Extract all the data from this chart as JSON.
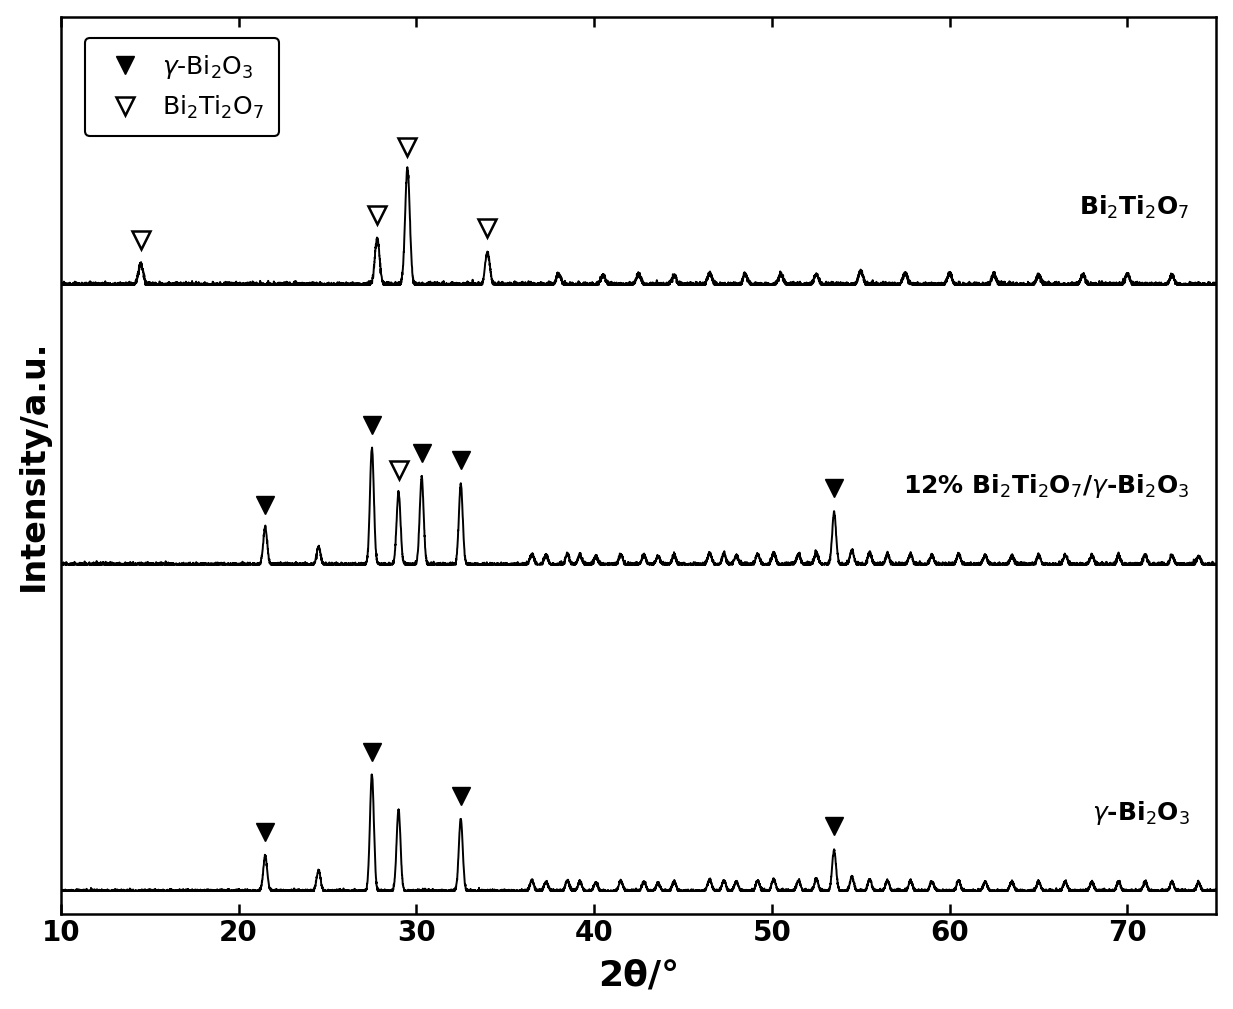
{
  "title": "",
  "xlabel": "2θ/°",
  "ylabel": "Intensity/a.u.",
  "xlim": [
    10,
    75
  ],
  "xticks": [
    10,
    20,
    30,
    40,
    50,
    60,
    70
  ],
  "background_color": "#ffffff",
  "legend_filled_label": "γ-Bi₂O₃",
  "legend_open_label": "Bi₂Ti₂O₇",
  "marker_size": 13,
  "font_size_labels": 24,
  "font_size_ticks": 20,
  "font_size_legend": 18,
  "font_size_annotations": 18,
  "off_gamma": 0.0,
  "off_comp": 2.8,
  "off_bi2ti": 5.2,
  "ylim": [
    -0.2,
    7.5
  ]
}
